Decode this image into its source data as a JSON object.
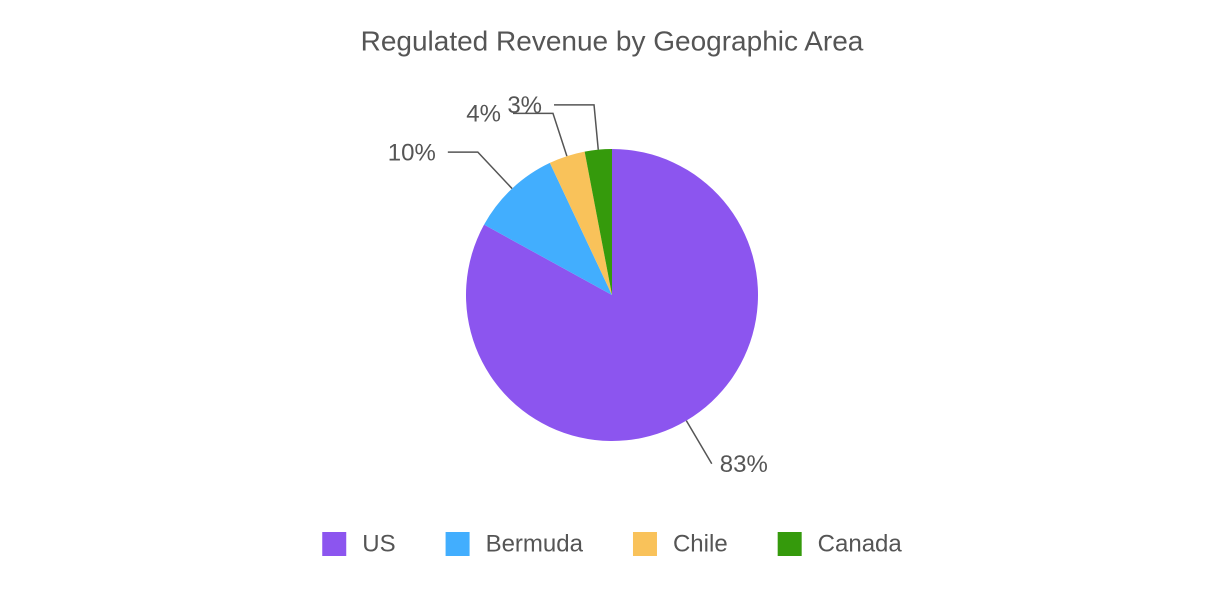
{
  "chart_data": {
    "type": "pie",
    "title": "Regulated Revenue by Geographic Area",
    "categories": [
      "US",
      "Bermuda",
      "Chile",
      "Canada"
    ],
    "values": [
      83,
      10,
      4,
      3
    ],
    "value_labels": [
      "83%",
      "10%",
      "4%",
      "3%"
    ],
    "colors": [
      "#8c55ef",
      "#42aefe",
      "#f9c25a",
      "#359a0c"
    ],
    "legend": "bottom"
  }
}
